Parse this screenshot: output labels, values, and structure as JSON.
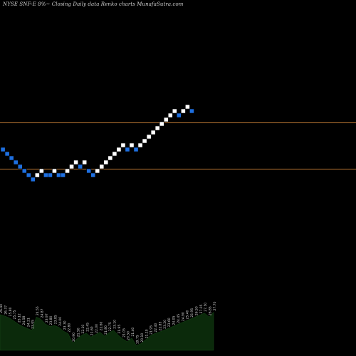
{
  "chart_data": {
    "type": "renko",
    "title": "NYSE SNF-E 8%~  Closing Daily data  Renko  charts MunafaSutra.com",
    "colors": {
      "background": "#000000",
      "up_brick": "#ffffff",
      "down_brick": "#1e6fe0",
      "reference_line": "#c07a35",
      "volume_area": "#0b2a0b",
      "volume_text": "#d8d8d8"
    },
    "reference_levels": [
      0.655,
      0.525
    ],
    "bricks": [
      {
        "direction": "down",
        "level": 12
      },
      {
        "direction": "down",
        "level": 11
      },
      {
        "direction": "down",
        "level": 10
      },
      {
        "direction": "down",
        "level": 9
      },
      {
        "direction": "down",
        "level": 8
      },
      {
        "direction": "down",
        "level": 7
      },
      {
        "direction": "down",
        "level": 6
      },
      {
        "direction": "down",
        "level": 5
      },
      {
        "direction": "up",
        "level": 6
      },
      {
        "direction": "up",
        "level": 7
      },
      {
        "direction": "down",
        "level": 6
      },
      {
        "direction": "down",
        "level": 6
      },
      {
        "direction": "up",
        "level": 7
      },
      {
        "direction": "down",
        "level": 6
      },
      {
        "direction": "down",
        "level": 6
      },
      {
        "direction": "up",
        "level": 7
      },
      {
        "direction": "up",
        "level": 8
      },
      {
        "direction": "up",
        "level": 9
      },
      {
        "direction": "down",
        "level": 8
      },
      {
        "direction": "up",
        "level": 9
      },
      {
        "direction": "down",
        "level": 7
      },
      {
        "direction": "down",
        "level": 6
      },
      {
        "direction": "up",
        "level": 7
      },
      {
        "direction": "up",
        "level": 8
      },
      {
        "direction": "up",
        "level": 9
      },
      {
        "direction": "up",
        "level": 10
      },
      {
        "direction": "up",
        "level": 11
      },
      {
        "direction": "up",
        "level": 12
      },
      {
        "direction": "up",
        "level": 13
      },
      {
        "direction": "down",
        "level": 12
      },
      {
        "direction": "up",
        "level": 13
      },
      {
        "direction": "down",
        "level": 12
      },
      {
        "direction": "up",
        "level": 13
      },
      {
        "direction": "up",
        "level": 14
      },
      {
        "direction": "up",
        "level": 15
      },
      {
        "direction": "up",
        "level": 16
      },
      {
        "direction": "up",
        "level": 17
      },
      {
        "direction": "up",
        "level": 18
      },
      {
        "direction": "up",
        "level": 19
      },
      {
        "direction": "up",
        "level": 20
      },
      {
        "direction": "up",
        "level": 21
      },
      {
        "direction": "down",
        "level": 20
      },
      {
        "direction": "up",
        "level": 21
      },
      {
        "direction": "up",
        "level": 22
      },
      {
        "direction": "down",
        "level": 21
      }
    ],
    "volume_labels": [
      "26.40",
      "26.37",
      "25.80",
      "25.75",
      "25.12",
      "24.58",
      "24.21",
      "23.95",
      "24.55",
      "24.87",
      "23.97",
      "23.80",
      "23.85",
      "24.00",
      "23.30",
      "22.80",
      "20.90",
      "21.50",
      "22.10",
      "22.45",
      "21.60",
      "22.00",
      "22.60",
      "21.80",
      "22.75",
      "23.10",
      "21.95",
      "21.05",
      "20.50",
      "21.40",
      "19.75",
      "20.10",
      "21.10",
      "21.95",
      "22.40",
      "22.85",
      "23.20",
      "23.60",
      "24.05",
      "24.45",
      "24.90",
      "25.40",
      "25.95",
      "26.50",
      "27.05",
      "27.50",
      "26.85",
      "27.70"
    ],
    "volume_marks": [
      0.75,
      0.72,
      0.68,
      0.62,
      0.55,
      0.5,
      0.46,
      0.42,
      0.7,
      0.65,
      0.55,
      0.5,
      0.52,
      0.48,
      0.4,
      0.35,
      0.15,
      0.25,
      0.32,
      0.36,
      0.28,
      0.33,
      0.38,
      0.3,
      0.37,
      0.42,
      0.32,
      0.24,
      0.18,
      0.26,
      0.1,
      0.14,
      0.22,
      0.3,
      0.35,
      0.38,
      0.42,
      0.46,
      0.5,
      0.54,
      0.58,
      0.62,
      0.66,
      0.7,
      0.74,
      0.78,
      0.7,
      0.8
    ]
  }
}
